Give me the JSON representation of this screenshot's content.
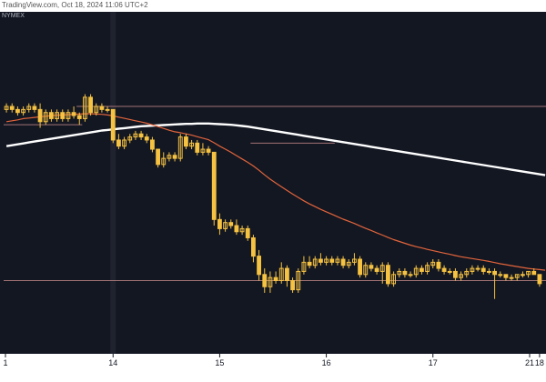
{
  "credit": "TradingView.com, Oct 18, 2024 11:06 UTC+2",
  "exchange": "NYMEX",
  "colors": {
    "background": "#131722",
    "candle": "#f5c242",
    "ema_fast": "#e2643b",
    "ma_slow": "#ffffff",
    "level": "#c78a8a",
    "axis_bg": "#ffffff"
  },
  "chart_data": {
    "type": "candlestick",
    "title": "",
    "xlabel": "",
    "ylabel": "",
    "x_ticks": [
      "1",
      "14",
      "15",
      "16",
      "17",
      "18",
      "21"
    ],
    "candles": [
      {
        "o": 74,
        "h": 76,
        "l": 73,
        "c": 75
      },
      {
        "o": 75,
        "h": 76,
        "l": 73,
        "c": 74
      },
      {
        "o": 74,
        "h": 75,
        "l": 72,
        "c": 73
      },
      {
        "o": 73,
        "h": 75,
        "l": 72,
        "c": 74
      },
      {
        "o": 74,
        "h": 76,
        "l": 73,
        "c": 75
      },
      {
        "o": 75,
        "h": 76,
        "l": 73,
        "c": 74
      },
      {
        "o": 74,
        "h": 76,
        "l": 68,
        "c": 70
      },
      {
        "o": 70,
        "h": 74,
        "l": 69,
        "c": 73
      },
      {
        "o": 73,
        "h": 74,
        "l": 70,
        "c": 71
      },
      {
        "o": 71,
        "h": 74,
        "l": 70,
        "c": 73
      },
      {
        "o": 73,
        "h": 74,
        "l": 70,
        "c": 71
      },
      {
        "o": 71,
        "h": 74,
        "l": 70,
        "c": 73
      },
      {
        "o": 73,
        "h": 75,
        "l": 71,
        "c": 72
      },
      {
        "o": 72,
        "h": 73,
        "l": 69,
        "c": 71
      },
      {
        "o": 71,
        "h": 79,
        "l": 70,
        "c": 78
      },
      {
        "o": 78,
        "h": 79,
        "l": 72,
        "c": 73
      },
      {
        "o": 73,
        "h": 76,
        "l": 72,
        "c": 75
      },
      {
        "o": 75,
        "h": 76,
        "l": 73,
        "c": 74
      },
      {
        "o": 74,
        "h": 75,
        "l": 73,
        "c": 74
      },
      {
        "o": 74,
        "h": 74,
        "l": 63,
        "c": 64
      },
      {
        "o": 64,
        "h": 66,
        "l": 61,
        "c": 62
      },
      {
        "o": 62,
        "h": 65,
        "l": 61,
        "c": 64
      },
      {
        "o": 64,
        "h": 66,
        "l": 63,
        "c": 65
      },
      {
        "o": 65,
        "h": 67,
        "l": 64,
        "c": 66
      },
      {
        "o": 66,
        "h": 67,
        "l": 64,
        "c": 65
      },
      {
        "o": 65,
        "h": 66,
        "l": 63,
        "c": 64
      },
      {
        "o": 64,
        "h": 65,
        "l": 60,
        "c": 61
      },
      {
        "o": 61,
        "h": 61,
        "l": 55,
        "c": 56
      },
      {
        "o": 56,
        "h": 60,
        "l": 55,
        "c": 58
      },
      {
        "o": 58,
        "h": 60,
        "l": 57,
        "c": 59
      },
      {
        "o": 59,
        "h": 60,
        "l": 57,
        "c": 58
      },
      {
        "o": 58,
        "h": 66,
        "l": 57,
        "c": 65
      },
      {
        "o": 65,
        "h": 66,
        "l": 61,
        "c": 62
      },
      {
        "o": 62,
        "h": 64,
        "l": 61,
        "c": 63
      },
      {
        "o": 63,
        "h": 64,
        "l": 59,
        "c": 60
      },
      {
        "o": 60,
        "h": 63,
        "l": 59,
        "c": 61
      },
      {
        "o": 61,
        "h": 62,
        "l": 59,
        "c": 60
      },
      {
        "o": 60,
        "h": 60,
        "l": 36,
        "c": 38
      },
      {
        "o": 38,
        "h": 40,
        "l": 33,
        "c": 35
      },
      {
        "o": 35,
        "h": 38,
        "l": 34,
        "c": 37
      },
      {
        "o": 37,
        "h": 38,
        "l": 35,
        "c": 36
      },
      {
        "o": 36,
        "h": 38,
        "l": 33,
        "c": 34
      },
      {
        "o": 34,
        "h": 36,
        "l": 33,
        "c": 35
      },
      {
        "o": 35,
        "h": 36,
        "l": 31,
        "c": 32
      },
      {
        "o": 32,
        "h": 33,
        "l": 24,
        "c": 26
      },
      {
        "o": 26,
        "h": 28,
        "l": 18,
        "c": 20
      },
      {
        "o": 20,
        "h": 22,
        "l": 14,
        "c": 16
      },
      {
        "o": 16,
        "h": 21,
        "l": 14,
        "c": 19
      },
      {
        "o": 19,
        "h": 21,
        "l": 17,
        "c": 18
      },
      {
        "o": 18,
        "h": 24,
        "l": 17,
        "c": 22
      },
      {
        "o": 22,
        "h": 23,
        "l": 16,
        "c": 18
      },
      {
        "o": 18,
        "h": 19,
        "l": 14,
        "c": 15
      },
      {
        "o": 15,
        "h": 22,
        "l": 14,
        "c": 21
      },
      {
        "o": 21,
        "h": 26,
        "l": 20,
        "c": 24
      },
      {
        "o": 24,
        "h": 26,
        "l": 22,
        "c": 23
      },
      {
        "o": 23,
        "h": 26,
        "l": 22,
        "c": 25
      },
      {
        "o": 25,
        "h": 27,
        "l": 23,
        "c": 24
      },
      {
        "o": 24,
        "h": 26,
        "l": 23,
        "c": 25
      },
      {
        "o": 25,
        "h": 26,
        "l": 23,
        "c": 24
      },
      {
        "o": 24,
        "h": 26,
        "l": 23,
        "c": 25
      },
      {
        "o": 25,
        "h": 26,
        "l": 22,
        "c": 23
      },
      {
        "o": 23,
        "h": 25,
        "l": 22,
        "c": 24
      },
      {
        "o": 24,
        "h": 27,
        "l": 23,
        "c": 25
      },
      {
        "o": 25,
        "h": 26,
        "l": 19,
        "c": 20
      },
      {
        "o": 20,
        "h": 24,
        "l": 19,
        "c": 23
      },
      {
        "o": 23,
        "h": 24,
        "l": 21,
        "c": 22
      },
      {
        "o": 22,
        "h": 23,
        "l": 20,
        "c": 21
      },
      {
        "o": 21,
        "h": 24,
        "l": 17,
        "c": 23
      },
      {
        "o": 23,
        "h": 24,
        "l": 16,
        "c": 17
      },
      {
        "o": 17,
        "h": 21,
        "l": 16,
        "c": 20
      },
      {
        "o": 20,
        "h": 22,
        "l": 19,
        "c": 21
      },
      {
        "o": 21,
        "h": 22,
        "l": 19,
        "c": 20
      },
      {
        "o": 20,
        "h": 21,
        "l": 19,
        "c": 20
      },
      {
        "o": 20,
        "h": 23,
        "l": 19,
        "c": 22
      },
      {
        "o": 22,
        "h": 23,
        "l": 20,
        "c": 21
      },
      {
        "o": 21,
        "h": 24,
        "l": 20,
        "c": 23
      },
      {
        "o": 23,
        "h": 25,
        "l": 22,
        "c": 24
      },
      {
        "o": 24,
        "h": 25,
        "l": 21,
        "c": 22
      },
      {
        "o": 22,
        "h": 23,
        "l": 20,
        "c": 21
      },
      {
        "o": 21,
        "h": 22,
        "l": 20,
        "c": 21
      },
      {
        "o": 21,
        "h": 22,
        "l": 18,
        "c": 19
      },
      {
        "o": 19,
        "h": 21,
        "l": 18,
        "c": 20
      },
      {
        "o": 20,
        "h": 22,
        "l": 19,
        "c": 21
      },
      {
        "o": 21,
        "h": 23,
        "l": 20,
        "c": 22
      },
      {
        "o": 22,
        "h": 23,
        "l": 21,
        "c": 22
      },
      {
        "o": 22,
        "h": 23,
        "l": 20,
        "c": 21
      },
      {
        "o": 21,
        "h": 22,
        "l": 20,
        "c": 21
      },
      {
        "o": 21,
        "h": 22,
        "l": 12,
        "c": 20
      },
      {
        "o": 20,
        "h": 21,
        "l": 19,
        "c": 20
      },
      {
        "o": 20,
        "h": 20,
        "l": 18,
        "c": 19
      },
      {
        "o": 19,
        "h": 20,
        "l": 18,
        "c": 19
      },
      {
        "o": 19,
        "h": 20,
        "l": 18,
        "c": 20
      },
      {
        "o": 20,
        "h": 21,
        "l": 19,
        "c": 20
      },
      {
        "o": 20,
        "h": 21,
        "l": 19,
        "c": 21
      },
      {
        "o": 21,
        "h": 22,
        "l": 20,
        "c": 20
      },
      {
        "o": 20,
        "h": 20,
        "l": 16,
        "c": 17
      }
    ],
    "ema_fast": [
      70,
      70.3,
      70.6,
      71,
      71.2,
      71.4,
      71.6,
      71.8,
      72,
      72.1,
      72.2,
      72.3,
      72.4,
      72.5,
      72.6,
      72.6,
      72.5,
      72.4,
      72.2,
      71.9,
      71.5,
      71.1,
      70.7,
      70.3,
      69.9,
      69.5,
      69,
      68.4,
      67.8,
      67.2,
      66.7,
      66.4,
      66,
      65.6,
      65.1,
      64.6,
      64.1,
      63.1,
      62,
      61,
      60,
      58.9,
      57.8,
      56.7,
      55.5,
      54.1,
      52.6,
      51.2,
      49.9,
      48.7,
      47.5,
      46.3,
      45.2,
      44.1,
      43.1,
      42.2,
      41.3,
      40.5,
      39.7,
      38.9,
      38.1,
      37.4,
      36.7,
      35.9,
      35.1,
      34.4,
      33.6,
      32.9,
      32.1,
      31.4,
      30.8,
      30.2,
      29.6,
      29.1,
      28.7,
      28.2,
      27.8,
      27.4,
      27,
      26.6,
      26.2,
      25.8,
      25.5,
      25.2,
      24.9,
      24.6,
      24.3,
      23.9,
      23.5,
      23.2,
      22.9,
      22.6,
      22.3,
      22,
      21.8,
      21.6,
      21.4
    ],
    "ma_slow": [
      62,
      62.3,
      62.6,
      62.9,
      63.2,
      63.5,
      63.8,
      64.1,
      64.4,
      64.7,
      65,
      65.3,
      65.6,
      65.9,
      66.2,
      66.5,
      66.8,
      67.1,
      67.3,
      67.5,
      67.7,
      67.9,
      68.1,
      68.3,
      68.5,
      68.6,
      68.7,
      68.8,
      68.9,
      69,
      69.1,
      69.2,
      69.3,
      69.3,
      69.4,
      69.4,
      69.4,
      69.3,
      69.2,
      69.1,
      69,
      68.8,
      68.6,
      68.4,
      68.1,
      67.8,
      67.5,
      67.2,
      66.9,
      66.6,
      66.3,
      66,
      65.7,
      65.4,
      65.1,
      64.8,
      64.5,
      64.2,
      63.9,
      63.6,
      63.3,
      63,
      62.7,
      62.4,
      62.1,
      61.8,
      61.5,
      61.2,
      60.9,
      60.6,
      60.3,
      60,
      59.7,
      59.4,
      59.1,
      58.8,
      58.5,
      58.2,
      57.9,
      57.6,
      57.3,
      57,
      56.7,
      56.4,
      56.1,
      55.8,
      55.5,
      55.2,
      54.9,
      54.6,
      54.3,
      54,
      53.7,
      53.4,
      53.1,
      52.8,
      52.5
    ],
    "horizontal_levels": [
      {
        "value": 75,
        "x_from_index": 13,
        "color": "#c78a8a"
      },
      {
        "value": 69,
        "x_from_index": 0,
        "x_to_index": 13,
        "color": "#c78a8a"
      },
      {
        "value": 63,
        "x_from_index": 44,
        "x_to_index": 58,
        "color": "#c78a8a"
      },
      {
        "value": 18,
        "x_from_index": 0,
        "color": "#c78a8a"
      }
    ],
    "ylim": [
      0,
      100
    ],
    "grid": false,
    "legend": "none"
  }
}
